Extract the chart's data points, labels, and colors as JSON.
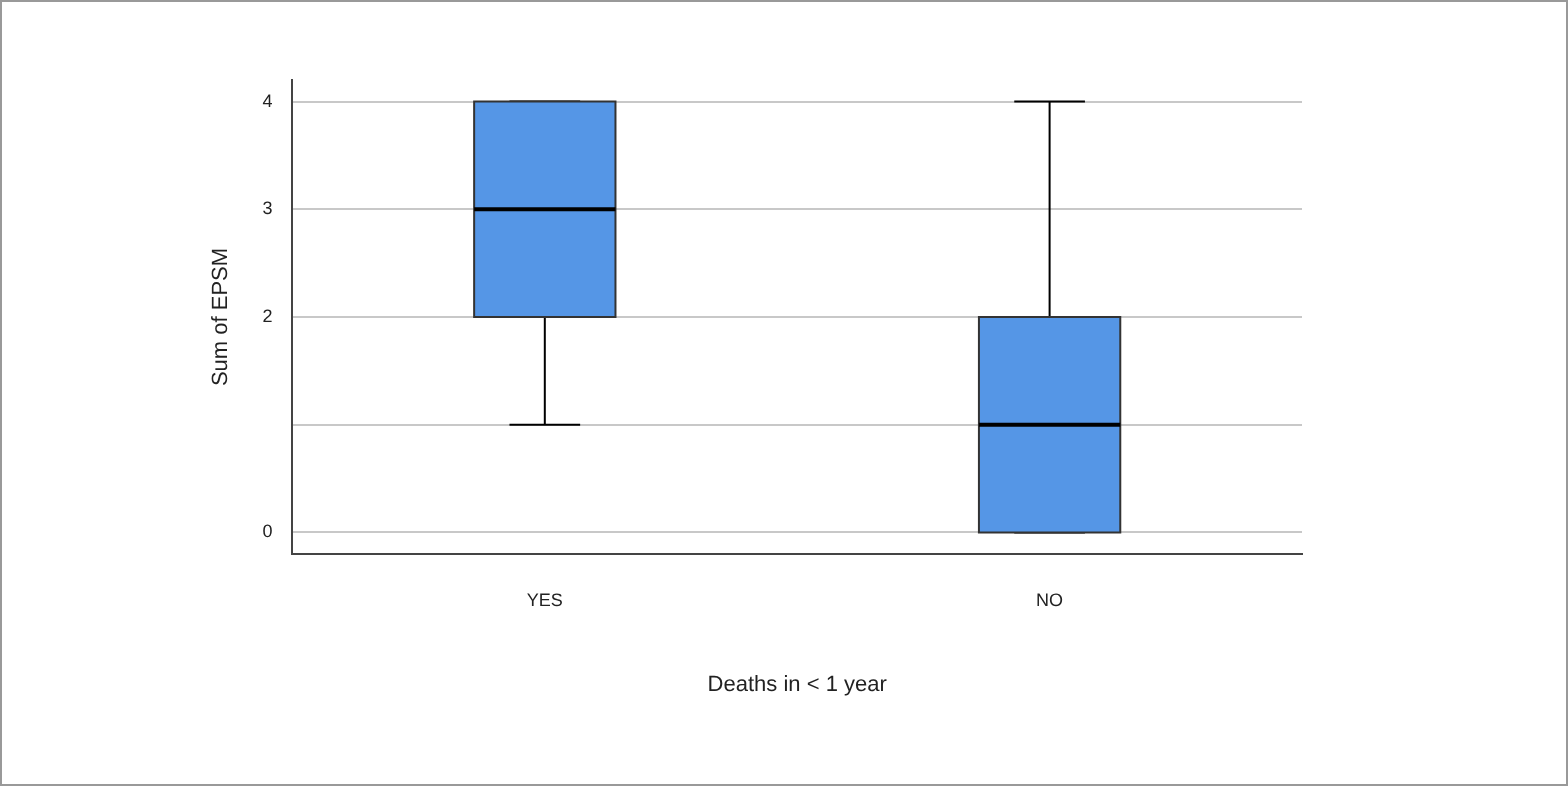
{
  "chart_data": {
    "type": "box",
    "xlabel": "Deaths in < 1 year",
    "ylabel": "Sum of EPSM",
    "categories": [
      "YES",
      "NO"
    ],
    "boxes": [
      {
        "low": 1,
        "q1": 2,
        "median": 3,
        "q3": 4,
        "high": 4
      },
      {
        "low": 0,
        "q1": 0,
        "median": 1,
        "q3": 2,
        "high": 4
      }
    ],
    "color": "#5596e6",
    "ylim": [
      -0.2,
      4.2
    ],
    "yticks": [
      0,
      {
        "value": 1,
        "label": null
      },
      2,
      3,
      4
    ],
    "grid": "y"
  }
}
